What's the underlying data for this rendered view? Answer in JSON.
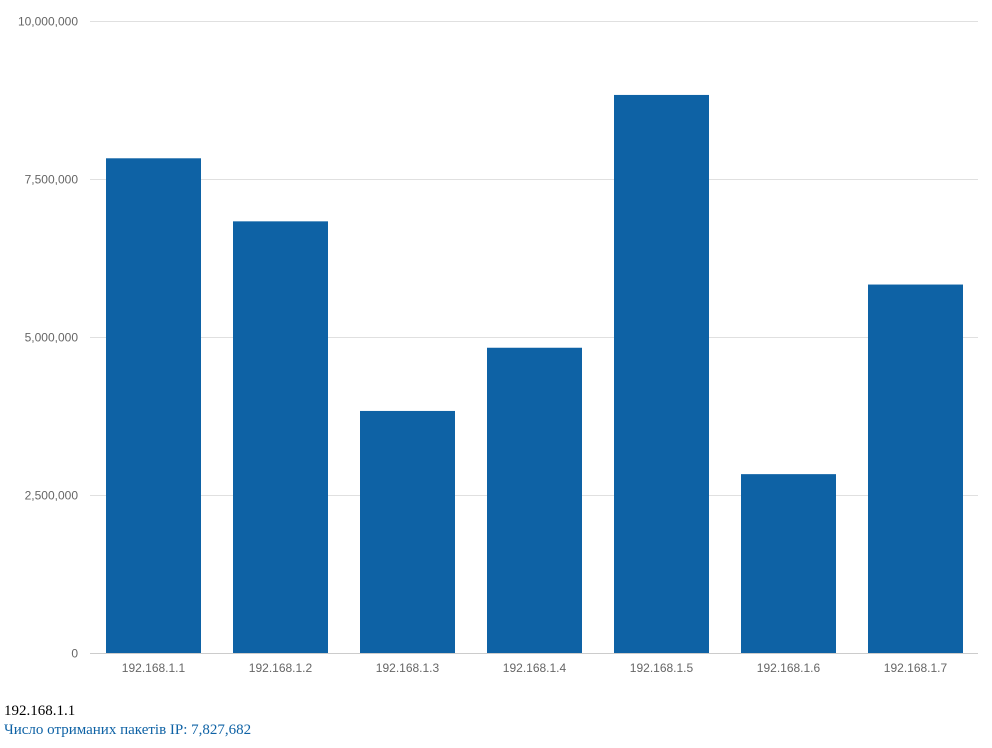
{
  "chart_data": {
    "type": "bar",
    "categories": [
      "192.168.1.1",
      "192.168.1.2",
      "192.168.1.3",
      "192.168.1.4",
      "192.168.1.5",
      "192.168.1.6",
      "192.168.1.7"
    ],
    "series": [
      {
        "values": [
          7827682,
          6830000,
          3830000,
          4830000,
          8830000,
          2830000,
          5830000
        ]
      }
    ],
    "ylim": [
      0,
      10000000
    ],
    "yticks": [
      0,
      2500000,
      5000000,
      7500000,
      10000000
    ],
    "ytick_labels": [
      "0",
      "2,500,000",
      "5,000,000",
      "7,500,000",
      "10,000,000"
    ],
    "grid": true,
    "legend": "none",
    "colors": {
      "bar": "#0e62a5",
      "grid": "#e0e0e0",
      "axis": "#cccccc",
      "tick_text": "#666666"
    }
  },
  "tooltip": {
    "title": "192.168.1.1",
    "series_label": "Число отриманих пакетів IP:",
    "value": "7,827,682"
  }
}
